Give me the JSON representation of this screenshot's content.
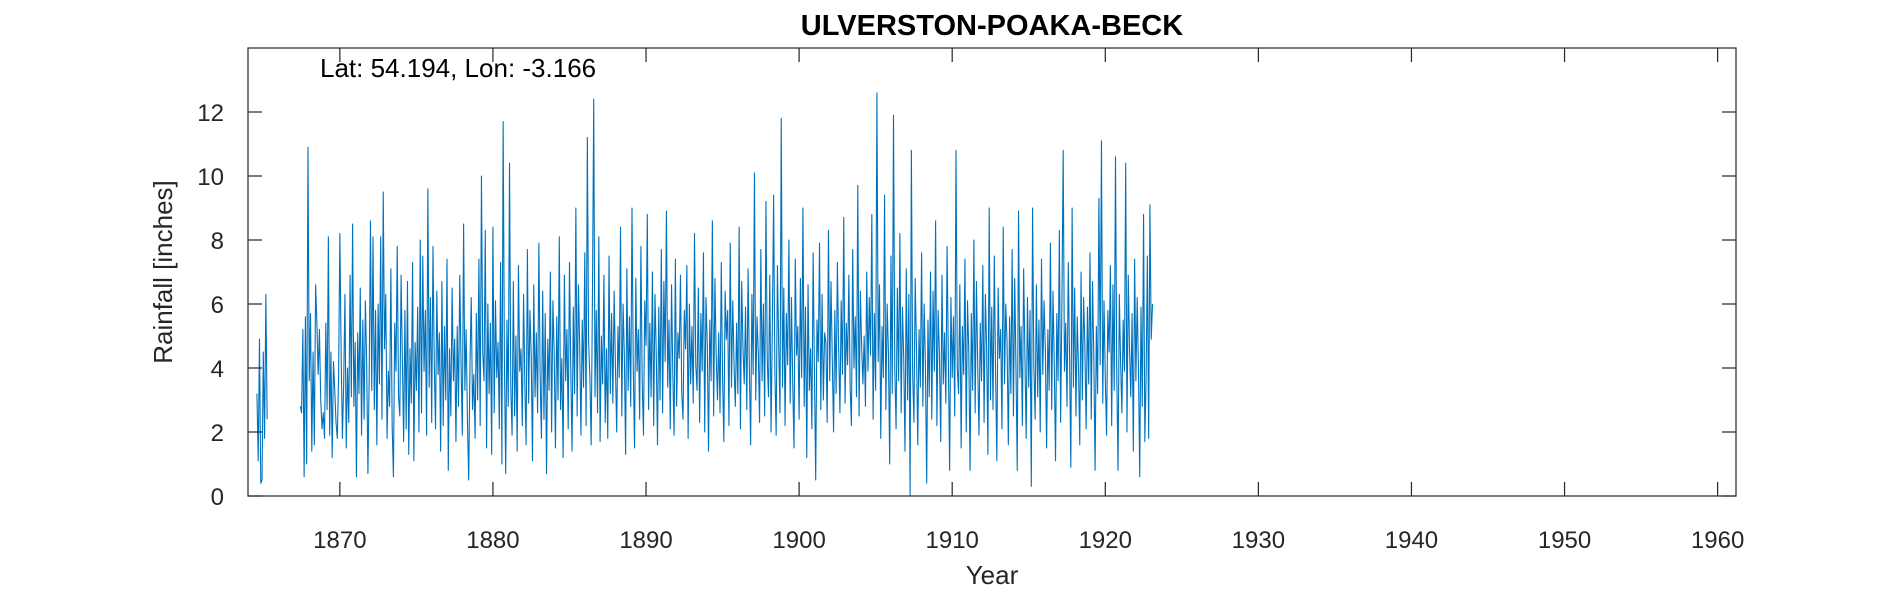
{
  "chart_data": {
    "type": "line",
    "title": "ULVERSTON-POAKA-BECK",
    "annotation": "Lat: 54.194, Lon: -3.166",
    "xlabel": "Year",
    "ylabel": "Rainfall [inches]",
    "xlim": [
      1864.0,
      1961.2
    ],
    "ylim": [
      0,
      14
    ],
    "x_ticks": [
      1870,
      1880,
      1890,
      1900,
      1910,
      1920,
      1930,
      1940,
      1950,
      1960
    ],
    "y_ticks": [
      0,
      2,
      4,
      6,
      8,
      10,
      12
    ],
    "grid": false,
    "box": true,
    "line_color": "#0072BD",
    "series": [
      {
        "frequency": "monthly",
        "segments": [
          {
            "start": "1864-08",
            "values": [
              3.2,
              1.1,
              4.9,
              0.4,
              0.5,
              4.5,
              1.8,
              6.3,
              2.4
            ]
          },
          {
            "start": "1867-06",
            "values": [
              2.8,
              2.6,
              5.2,
              0.6,
              5.6,
              1.0,
              10.9,
              3.6,
              5.7,
              1.4,
              4.5,
              1.6,
              6.6,
              5.4,
              3.8,
              5.2,
              3.0,
              2.1,
              2.6,
              1.8,
              5.4,
              2.7,
              8.1,
              1.9,
              4.5,
              1.2,
              4.2,
              3.3,
              2.3,
              1.8,
              3.7,
              8.2,
              4.5,
              1.8,
              3.5,
              6.3,
              1.5,
              4.0,
              2.3,
              6.9,
              3.1,
              8.5,
              2.8,
              4.8,
              0.6,
              5.1,
              3.2,
              6.5,
              1.9,
              5.5,
              2.4,
              6.1,
              4.2,
              0.7,
              3.7,
              8.6,
              3.3,
              8.1,
              2.7,
              5.8,
              1.6,
              6.0,
              3.5,
              8.1,
              2.4,
              9.5,
              4.6,
              6.3,
              1.8,
              3.9,
              2.8,
              7.1,
              2.2,
              0.6,
              5.4,
              3.9,
              7.8,
              3.1,
              2.5,
              6.9,
              4.3,
              1.7,
              5.8,
              2.1,
              6.7,
              1.3,
              4.6,
              2.9,
              7.3,
              1.1,
              4.8,
              3.3,
              5.9,
              2.0,
              8.0,
              2.6,
              7.5,
              3.9,
              5.8,
              1.9,
              9.6,
              3.4,
              6.2,
              2.3,
              7.8,
              4.2,
              2.1,
              6.4,
              3.8,
              5.1,
              1.4,
              6.7,
              2.2,
              5.3,
              3.0,
              7.4,
              0.8,
              4.6,
              2.5,
              6.5,
              3.6,
              4.9,
              1.7,
              5.3,
              2.8,
              6.9,
              4.1,
              1.9,
              8.5,
              3.3,
              5.2,
              2.4,
              0.5,
              4.1,
              6.2,
              2.7,
              3.8,
              1.8,
              5.7,
              3.0,
              7.4,
              2.2,
              10.0,
              4.5,
              3.6,
              8.3,
              1.5,
              6.0,
              3.2,
              5.4,
              1.3,
              8.4,
              2.6,
              6.1,
              3.7,
              4.8,
              2.1,
              7.3,
              1.0,
              11.7,
              4.2,
              0.7,
              5.5,
              2.8,
              10.4,
              3.4,
              1.9,
              6.7,
              2.5,
              5.0,
              1.4,
              7.2,
              3.9,
              4.6,
              2.2,
              6.3,
              3.5,
              1.6,
              7.7,
              2.9,
              5.8,
              4.4,
              1.1,
              6.6,
              3.1,
              5.1,
              2.6,
              7.9,
              3.8,
              1.8,
              6.4,
              2.4,
              5.7,
              0.7,
              4.9,
              3.3,
              7.0,
              2.0,
              6.1,
              4.5,
              1.5,
              5.6,
              3.0,
              8.1,
              2.7,
              4.3,
              1.2,
              6.9,
              3.6,
              5.2,
              2.1,
              7.3,
              4.0,
              1.4,
              5.9,
              3.2,
              9.0,
              2.5,
              6.6,
              4.7,
              1.9,
              5.5,
              3.4,
              7.6,
              2.2,
              11.2,
              4.8,
              3.7,
              1.6,
              6.2,
              12.4,
              3.1,
              5.8,
              2.6,
              8.1,
              1.7,
              5.0,
              3.5,
              6.9,
              2.3,
              4.6,
              1.8,
              7.5,
              3.2,
              5.7,
              2.9,
              6.4,
              4.1,
              2.0,
              5.3,
              3.7,
              8.4,
              2.5,
              6.0,
              4.4,
              1.3,
              7.1,
              3.3,
              5.6,
              2.8,
              9.0,
              4.0,
              1.5,
              6.8,
              3.9,
              5.2,
              2.4,
              7.8,
              3.6,
              1.9,
              6.1,
              4.7,
              8.8,
              2.7,
              5.4,
              3.1,
              7.0,
              2.2,
              6.3,
              4.5,
              1.6,
              5.9,
              3.0,
              7.7,
              2.6,
              6.7,
              4.2,
              8.9,
              3.4,
              5.5,
              2.1,
              6.6,
              3.8,
              1.9,
              7.4,
              2.8,
              5.1,
              4.3,
              6.9,
              3.2,
              2.4,
              5.8,
              4.6,
              7.2,
              1.8,
              6.0,
              3.5,
              5.3,
              2.9,
              8.2,
              4.1,
              3.3,
              6.5,
              2.3,
              5.7,
              3.9,
              7.6,
              2.0,
              6.2,
              4.8,
              1.4,
              5.5,
              3.6,
              8.6,
              2.5,
              6.8,
              4.4,
              3.0,
              5.1,
              2.6,
              7.3,
              3.7,
              1.7,
              6.4,
              4.9,
              5.8,
              2.2,
              7.9,
              3.4,
              6.1,
              4.1,
              2.8,
              5.4,
              3.2,
              8.4,
              2.1,
              6.7,
              4.6,
              3.5,
              5.9,
              2.7,
              7.1,
              4.0,
              1.6,
              6.3,
              3.8,
              10.1,
              3.0,
              5.6,
              4.5,
              2.3,
              7.7,
              3.6,
              6.0,
              2.5,
              9.2,
              4.3,
              3.1,
              6.9,
              2.0,
              5.2,
              9.4,
              3.9,
              1.9,
              7.2,
              4.7,
              2.6,
              11.8,
              3.4,
              6.5,
              2.2,
              5.7,
              4.1,
              8.0,
              2.9,
              6.2,
              3.5,
              1.5,
              7.4,
              4.4,
              5.3,
              2.4,
              6.8,
              3.7,
              9.0,
              2.8,
              5.9,
              1.2,
              6.6,
              3.3,
              4.6,
              2.1,
              7.6,
              3.9,
              0.5,
              5.5,
              4.2,
              7.9,
              2.7,
              6.3,
              3.0,
              5.1,
              4.8,
              2.3,
              8.3,
              3.6,
              6.7,
              4.3,
              2.0,
              5.8,
              3.2,
              7.3,
              4.6,
              2.6,
              6.1,
              3.8,
              8.7,
              2.9,
              5.4,
              4.1,
              6.9,
              3.4,
              2.2,
              7.7,
              4.0,
              5.6,
              3.1,
              9.7,
              2.5,
              6.4,
              4.7,
              3.5,
              5.0,
              2.8,
              7.0,
              3.9,
              6.2,
              4.4,
              8.8,
              2.4,
              5.7,
              3.3,
              12.6,
              4.2,
              6.6,
              1.8,
              5.3,
              3.7,
              9.4,
              2.7,
              6.0,
              4.5,
              1.0,
              7.5,
              3.2,
              11.9,
              4.0,
              2.1,
              6.5,
              3.6,
              8.2,
              2.6,
              5.9,
              4.3,
              1.4,
              7.1,
              3.0,
              6.3,
              0.0,
              10.8,
              3.8,
              2.3,
              6.8,
              4.6,
              1.6,
              5.2,
              3.4,
              7.6,
              2.8,
              6.0,
              4.1,
              0.4,
              5.5,
              3.1,
              7.0,
              2.4,
              6.4,
              3.9,
              8.6,
              2.2,
              5.8,
              4.4,
              1.7,
              6.9,
              3.5,
              5.1,
              2.9,
              7.8,
              4.2,
              0.8,
              6.2,
              3.7,
              5.6,
              2.5,
              10.8,
              4.0,
              3.2,
              6.6,
              1.5,
              5.3,
              3.8,
              7.4,
              2.0,
              6.1,
              4.5,
              0.8,
              5.7,
              3.3,
              8.0,
              2.6,
              6.7,
              4.1,
              1.9,
              5.4,
              3.6,
              7.2,
              2.3,
              6.3,
              4.6,
              1.3,
              9.0,
              3.0,
              5.9,
              2.7,
              7.5,
              3.9,
              1.1,
              6.5,
              4.3,
              5.2,
              2.1,
              8.4,
              3.5,
              6.0,
              4.8,
              1.6,
              5.6,
              3.2,
              7.7,
              2.5,
              6.8,
              4.0,
              0.8,
              8.9,
              3.7,
              5.3,
              2.2,
              7.1,
              4.4,
              1.8,
              6.2,
              3.4,
              5.8,
              0.3,
              9.0,
              4.1,
              2.4,
              6.6,
              3.1,
              5.5,
              2.0,
              7.4,
              3.8,
              6.1,
              4.6,
              1.5,
              5.2,
              3.3,
              7.9,
              2.7,
              6.4,
              4.2,
              1.1,
              5.7,
              3.6,
              8.3,
              2.3,
              6.0,
              10.8,
              3.9,
              5.4,
              2.8,
              7.3,
              4.3,
              0.9,
              9.0,
              3.4,
              6.5,
              2.5,
              5.6,
              4.0,
              1.6,
              7.0,
              3.0,
              6.2,
              4.7,
              2.1,
              5.9,
              3.5,
              7.6,
              2.4,
              6.7,
              4.4,
              0.8,
              5.3,
              3.2,
              9.3,
              4.1,
              11.1,
              2.9,
              6.1,
              3.7,
              1.9,
              5.8,
              4.5,
              7.2,
              2.2,
              6.6,
              3.3,
              10.6,
              3.8,
              0.8,
              6.3,
              4.2,
              2.6,
              5.5,
              3.9,
              10.4,
              2.0,
              6.9,
              4.6,
              3.1,
              5.7,
              1.4,
              7.4,
              3.6,
              6.2,
              4.0,
              0.6,
              5.9,
              2.8,
              8.8,
              1.7,
              3.7,
              7.5,
              1.8,
              9.1,
              4.9,
              6.0
            ]
          }
        ]
      }
    ]
  }
}
